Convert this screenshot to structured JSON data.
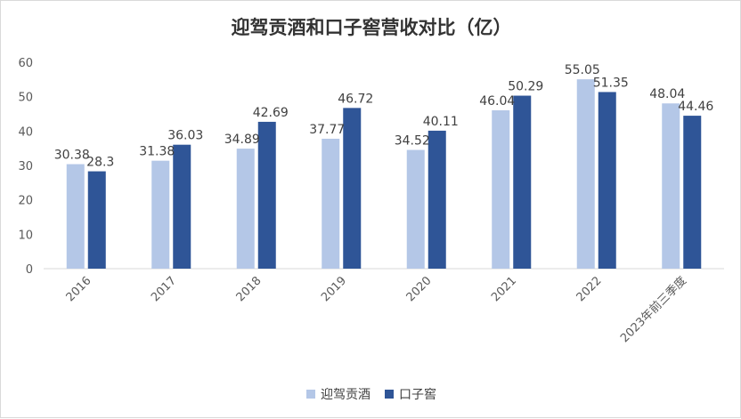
{
  "chart_data": {
    "type": "bar",
    "title": "迎驾贡酒和口子窖营收对比（亿）",
    "categories": [
      "2016",
      "2017",
      "2018",
      "2019",
      "2020",
      "2021",
      "2022",
      "2023年前三季度"
    ],
    "series": [
      {
        "name": "迎驾贡酒",
        "color": "#b4c7e7",
        "values": [
          30.38,
          31.38,
          34.89,
          37.77,
          34.52,
          46.04,
          55.05,
          48.04
        ],
        "labels": [
          "30.38",
          "31.38",
          "34.89",
          "37.77",
          "34.52",
          "46.04",
          "55.05",
          "48.04"
        ]
      },
      {
        "name": "口子窖",
        "color": "#2f5597",
        "values": [
          28.3,
          36.03,
          42.69,
          46.72,
          40.11,
          50.29,
          51.35,
          44.46
        ],
        "labels": [
          "28.3",
          "36.03",
          "42.69",
          "46.72",
          "40.11",
          "50.29",
          "51.35",
          "44.46"
        ]
      }
    ],
    "ylim": [
      0,
      60
    ],
    "yticks": [
      "0",
      "10",
      "20",
      "30",
      "40",
      "50",
      "60"
    ],
    "grid": false,
    "legend": "bottom"
  }
}
